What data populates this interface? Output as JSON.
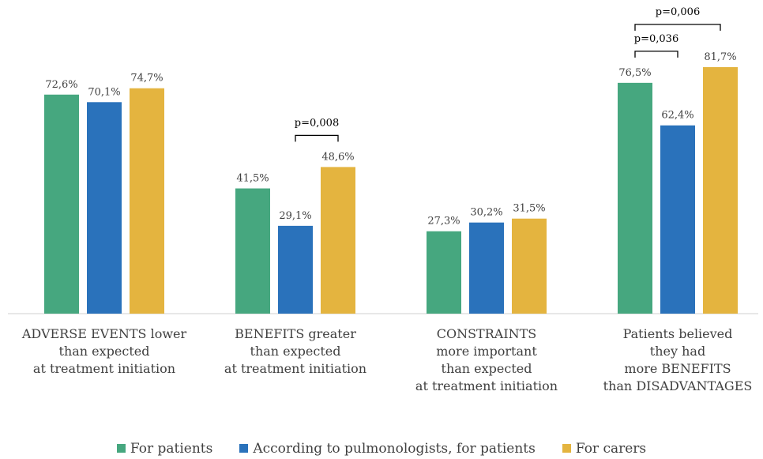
{
  "chart_data": {
    "type": "bar",
    "categories": [
      "ADVERSE EVENTS lower\nthan expected\nat treatment initiation",
      "BENEFITS greater\nthan expected\nat treatment initiation",
      "CONSTRAINTS\nmore important\nthan expected\nat treatment initiation",
      "Patients believed\nthey had\nmore BENEFITS\nthan DISADVANTAGES"
    ],
    "series": [
      {
        "name": "For patients",
        "color": "#46a77f",
        "values": [
          72.6,
          41.5,
          27.3,
          76.5
        ],
        "value_labels": [
          "72,6%",
          "41,5%",
          "27,3%",
          "76,5%"
        ]
      },
      {
        "name": "According to pulmonologists, for patients",
        "color": "#2a72bb",
        "values": [
          70.1,
          29.1,
          30.2,
          62.4
        ],
        "value_labels": [
          "70,1%",
          "29,1%",
          "30,2%",
          "62,4%"
        ]
      },
      {
        "name": "For carers",
        "color": "#e4b43f",
        "values": [
          74.7,
          48.6,
          31.5,
          81.7
        ],
        "value_labels": [
          "74,7%",
          "48,6%",
          "31,5%",
          "81,7%"
        ]
      }
    ],
    "annotations": [
      {
        "text": "p=0,008",
        "category": 1,
        "from": 1,
        "to": 2
      },
      {
        "text": "p=0,036",
        "category": 3,
        "from": 0,
        "to": 1
      },
      {
        "text": "p=0,006",
        "category": 3,
        "from": 0,
        "to": 2
      }
    ],
    "legend": "bottom"
  }
}
